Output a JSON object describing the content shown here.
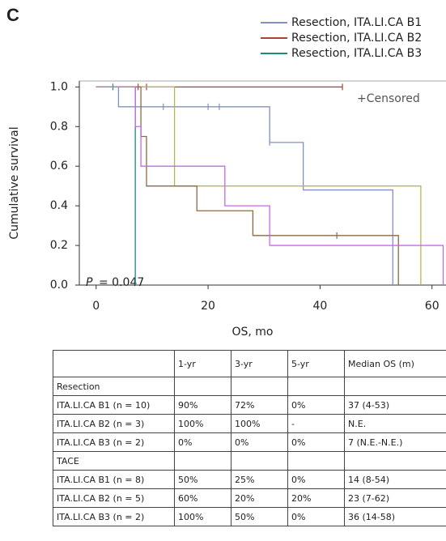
{
  "chart_data": {
    "type": "km",
    "panel_label": "C",
    "y_label": "Cumulative survival",
    "x_label": "OS, mo",
    "censored_label": "+Censored",
    "p_symbol": "P",
    "p_text": "= 0.047",
    "xlim": [
      -3,
      62.5
    ],
    "xticks": [
      0,
      20,
      40,
      60
    ],
    "ylim": [
      0,
      1.03
    ],
    "yticks": [
      {
        "value": 0,
        "label": "0.0"
      },
      0.2,
      0.4,
      0.6,
      0.8,
      {
        "value": 1,
        "label": "1.0"
      }
    ],
    "series": [
      {
        "name": "Resection, ITA.LI.CA B1",
        "color": "#8090c4",
        "x": [
          0,
          4,
          31,
          37,
          53
        ],
        "values": [
          1,
          0.9,
          0.72,
          0.48,
          0
        ],
        "censored": {
          "x": [
            12,
            20,
            22,
            31
          ],
          "values": [
            0.9,
            0.9,
            0.9,
            0.72
          ]
        }
      },
      {
        "name": "Resection, ITA.LI.CA B2",
        "color": "#a8452f",
        "x": [
          0,
          44
        ],
        "values": [
          1,
          1
        ],
        "censored": {
          "x": [
            7.5,
            9,
            44
          ],
          "values": [
            1,
            1,
            1
          ]
        }
      },
      {
        "name": "Resection, ITA.LI.CA B3",
        "color": "#1a8c7e",
        "x": [
          0,
          7
        ],
        "values": [
          1,
          0
        ],
        "censored": {
          "x": [
            3
          ],
          "values": [
            1
          ]
        }
      },
      {
        "color": "#b5b84e",
        "x": [
          0,
          14,
          58
        ],
        "values": [
          1,
          0.5,
          0
        ],
        "censored": {
          "x": [],
          "values": []
        }
      },
      {
        "color": "#8a6a44",
        "x": [
          0,
          8,
          9,
          18,
          28,
          54
        ],
        "values": [
          1,
          0.75,
          0.5,
          0.375,
          0.25,
          0
        ],
        "censored": {
          "x": [
            43
          ],
          "values": [
            0.25
          ]
        }
      },
      {
        "color": "#c46ae6",
        "x": [
          0,
          7,
          8,
          23,
          31,
          62
        ],
        "values": [
          1,
          0.8,
          0.6,
          0.4,
          0.2,
          0
        ],
        "censored": {
          "x": [],
          "values": []
        }
      }
    ]
  },
  "table": {
    "header": [
      "",
      "1-yr",
      "3-yr",
      "5-yr",
      "Median OS (m)"
    ],
    "rows": [
      [
        "Resection",
        "",
        "",
        "",
        ""
      ],
      [
        "ITA.LI.CA B1 (n = 10)",
        "90%",
        "72%",
        "0%",
        "37 (4-53)"
      ],
      [
        "ITA.LI.CA B2 (n = 3)",
        "100%",
        "100%",
        "-",
        "N.E."
      ],
      [
        "ITA.LI.CA B3 (n = 2)",
        "0%",
        "0%",
        "0%",
        "7 (N.E.-N.E.)"
      ],
      [
        "TACE",
        "",
        "",
        "",
        ""
      ],
      [
        "ITA.LI.CA B1 (n = 8)",
        "50%",
        "25%",
        "0%",
        "14 (8-54)"
      ],
      [
        "ITA.LI.CA B2 (n = 5)",
        "60%",
        "20%",
        "20%",
        "23 (7-62)"
      ],
      [
        "ITA.LI.CA B3 (n = 2)",
        "100%",
        "50%",
        "0%",
        "36 (14-58)"
      ]
    ]
  }
}
